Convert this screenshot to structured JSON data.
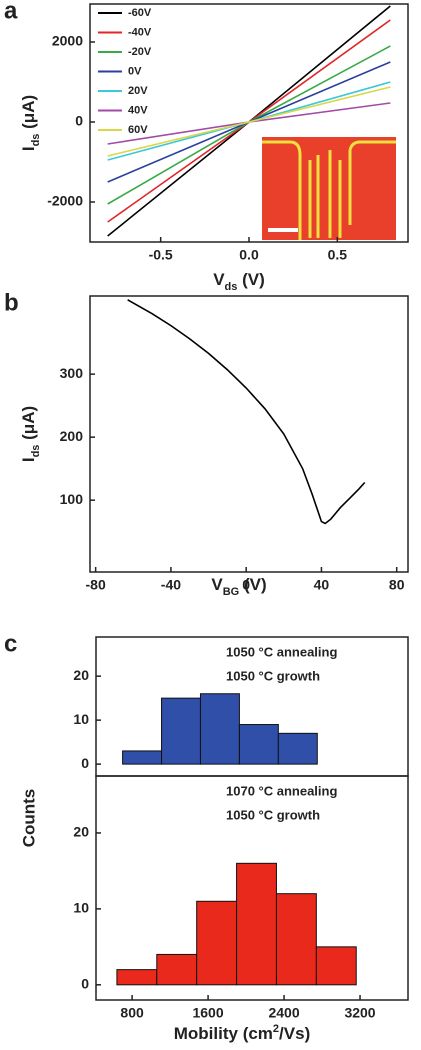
{
  "chart_data": [
    {
      "type": "line",
      "panel_label": "a",
      "xlabel": {
        "text": "V",
        "sub": "ds",
        "unit": " (V)"
      },
      "ylabel": {
        "text": "I",
        "sub": "ds",
        "unit": " (μA)"
      },
      "x": [
        -0.8,
        0,
        0.8
      ],
      "series": [
        {
          "name": "-60V",
          "color": "#000000",
          "values": [
            -2850,
            0,
            2900
          ]
        },
        {
          "name": "-40V",
          "color": "#e0262a",
          "values": [
            -2500,
            0,
            2550
          ]
        },
        {
          "name": "-20V",
          "color": "#3aaa48",
          "values": [
            -2050,
            0,
            1900
          ]
        },
        {
          "name": "0V",
          "color": "#2b3f9e",
          "values": [
            -1500,
            0,
            1500
          ]
        },
        {
          "name": "20V",
          "color": "#3cc8d8",
          "values": [
            -950,
            0,
            1000
          ]
        },
        {
          "name": "40V",
          "color": "#a24aa8",
          "values": [
            -550,
            0,
            475
          ]
        },
        {
          "name": "60V",
          "color": "#d8d848",
          "values": [
            -850,
            0,
            875
          ]
        }
      ],
      "xlim": [
        -0.9,
        0.9
      ],
      "ylim": [
        -3000,
        2950
      ],
      "xticks": [
        -0.5,
        {
          "value": 0,
          "label": "0.0"
        },
        0.5
      ],
      "yticks": [
        -2000,
        0,
        2000
      ]
    },
    {
      "type": "line",
      "panel_label": "b",
      "xlabel": {
        "text": "V",
        "sub": "BG",
        "unit": " (V)"
      },
      "ylabel": {
        "text": "I",
        "sub": "ds",
        "unit": " (μA)"
      },
      "x": [
        -63,
        -50,
        -40,
        -30,
        -20,
        -10,
        0,
        10,
        20,
        30,
        35,
        40,
        42,
        45,
        50,
        55,
        60,
        63
      ],
      "values": [
        418,
        396,
        377,
        356,
        333,
        307,
        278,
        245,
        205,
        150,
        110,
        66,
        63,
        70,
        88,
        103,
        118,
        128
      ],
      "color": "#000000",
      "xlim": [
        -83,
        86
      ],
      "ylim": [
        -14,
        424
      ],
      "xticks": [
        -80,
        -40,
        0,
        40,
        80
      ],
      "yticks": [
        100,
        200,
        300
      ]
    },
    {
      "type": "histogram",
      "panel_label": "c",
      "ylabel": "Counts",
      "annotations": [
        "1050 °C annealing",
        "1050 °C growth"
      ],
      "bins": [
        700,
        1110,
        1520,
        1930,
        2340,
        2750
      ],
      "values": [
        3,
        15,
        16,
        9,
        7
      ],
      "color": "#2f4fa8",
      "xlim": [
        420,
        3705
      ],
      "ylim": [
        -2.7,
        28.9
      ],
      "yticks": [
        0,
        10,
        20
      ]
    },
    {
      "type": "histogram",
      "xlabel": {
        "text": "Mobility (cm",
        "sup": "2",
        "unit": "/Vs)"
      },
      "annotations": [
        "1070 °C annealing",
        "1050 °C growth"
      ],
      "bins": [
        640,
        1060,
        1480,
        1900,
        2320,
        2740,
        3160
      ],
      "values": [
        2,
        4,
        11,
        16,
        12,
        5
      ],
      "color": "#e8291c",
      "xlim": [
        420,
        3705
      ],
      "ylim": [
        -2.0,
        27.5
      ],
      "xticks": [
        800,
        1600,
        2400,
        3200
      ],
      "yticks": [
        0,
        10,
        20
      ]
    }
  ]
}
